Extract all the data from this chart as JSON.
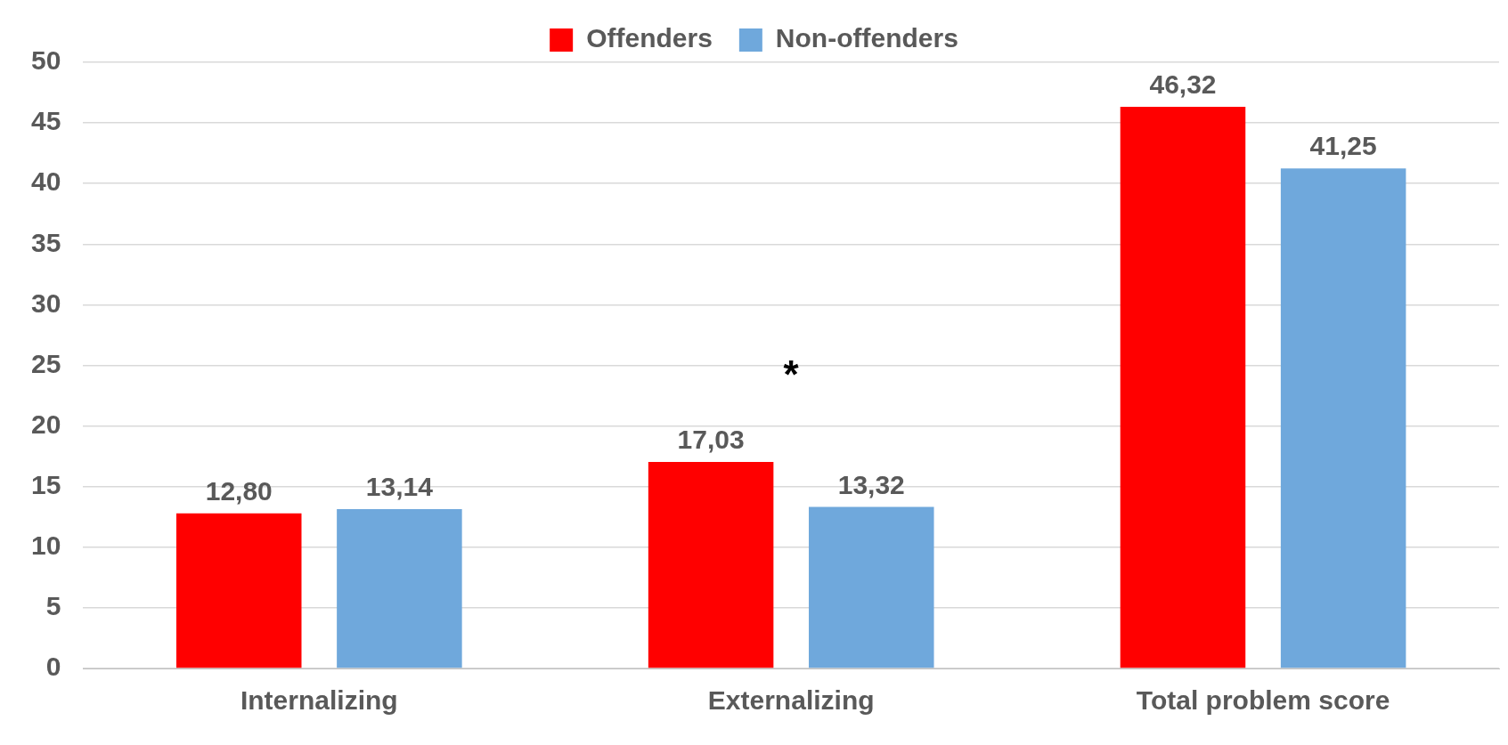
{
  "chart_data": {
    "type": "bar",
    "categories": [
      "Internalizing",
      "Externalizing",
      "Total problem score"
    ],
    "series": [
      {
        "name": "Offenders",
        "color": "#ff0000",
        "values": [
          12.8,
          17.03,
          46.32
        ],
        "value_labels": [
          "12,80",
          "17,03",
          "46,32"
        ]
      },
      {
        "name": "Non-offenders",
        "color": "#6fa8dc",
        "values": [
          13.14,
          13.32,
          41.25
        ],
        "value_labels": [
          "13,14",
          "13,32",
          "41,25"
        ]
      }
    ],
    "ylim": [
      0,
      50
    ],
    "yticks": [
      0,
      5,
      10,
      15,
      20,
      25,
      30,
      35,
      40,
      45,
      50
    ],
    "grid": "y",
    "legend": "top",
    "annotations": [
      "*"
    ]
  }
}
